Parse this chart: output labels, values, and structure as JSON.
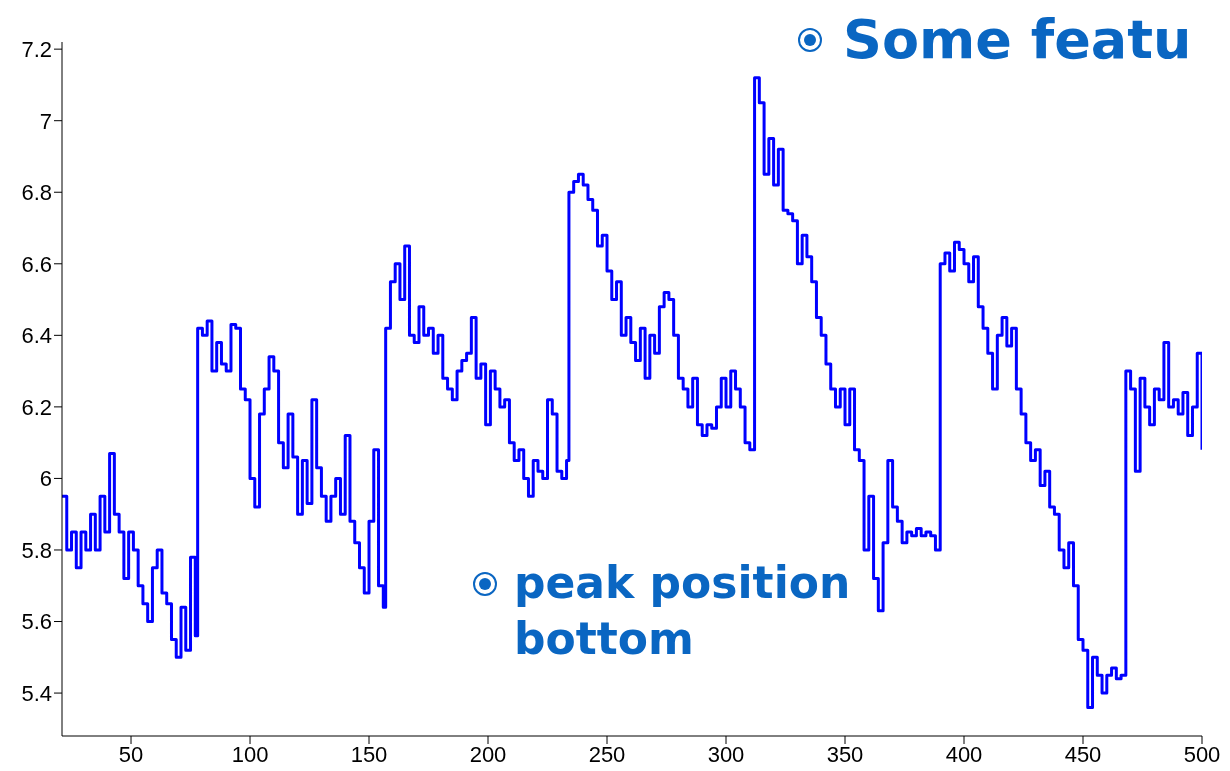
{
  "chart_data": {
    "type": "step",
    "title": "Some featu",
    "annotations": [
      "peak position bottom"
    ],
    "xlim": [
      21,
      500
    ],
    "ylim": [
      5.28,
      7.22
    ],
    "marker": "none",
    "line_style": "solid",
    "xticks": [
      50,
      100,
      150,
      200,
      250,
      300,
      350,
      400,
      450,
      500
    ],
    "yticks": [
      5.4,
      5.6,
      5.8,
      6,
      6.2,
      6.4,
      6.6,
      6.8,
      7,
      7.2
    ],
    "series": [
      {
        "color": "#0000ff",
        "x": [
          21,
          23,
          25,
          27,
          29,
          31,
          33,
          35,
          37,
          39,
          41,
          43,
          45,
          47,
          49,
          51,
          53,
          55,
          57,
          59,
          61,
          63,
          65,
          67,
          69,
          71,
          73,
          75,
          77,
          78,
          80,
          82,
          84,
          86,
          88,
          90,
          92,
          94,
          96,
          98,
          100,
          102,
          104,
          106,
          108,
          110,
          112,
          114,
          116,
          118,
          120,
          122,
          124,
          126,
          128,
          130,
          132,
          134,
          136,
          138,
          140,
          142,
          144,
          146,
          148,
          150,
          152,
          154,
          156,
          157,
          159,
          161,
          163,
          165,
          167,
          169,
          171,
          173,
          175,
          177,
          179,
          181,
          183,
          185,
          187,
          189,
          191,
          193,
          195,
          197,
          199,
          201,
          203,
          205,
          207,
          209,
          211,
          213,
          215,
          217,
          219,
          221,
          223,
          225,
          227,
          229,
          231,
          233,
          234,
          236,
          238,
          240,
          242,
          244,
          246,
          248,
          250,
          252,
          254,
          256,
          258,
          260,
          262,
          264,
          266,
          268,
          270,
          272,
          274,
          276,
          278,
          280,
          282,
          284,
          286,
          288,
          290,
          292,
          294,
          296,
          298,
          300,
          302,
          304,
          306,
          308,
          310,
          312,
          314,
          316,
          318,
          320,
          322,
          324,
          326,
          328,
          330,
          332,
          334,
          336,
          338,
          340,
          342,
          344,
          346,
          348,
          350,
          352,
          354,
          356,
          358,
          360,
          362,
          364,
          366,
          368,
          370,
          372,
          374,
          376,
          378,
          380,
          382,
          384,
          386,
          388,
          390,
          392,
          394,
          396,
          398,
          400,
          402,
          404,
          406,
          408,
          410,
          412,
          414,
          416,
          418,
          420,
          422,
          424,
          426,
          428,
          430,
          432,
          434,
          436,
          438,
          440,
          442,
          444,
          446,
          448,
          450,
          452,
          454,
          456,
          458,
          460,
          462,
          464,
          466,
          468,
          470,
          472,
          474,
          476,
          478,
          480,
          482,
          484,
          486,
          488,
          490,
          492,
          494,
          496,
          498,
          500
        ],
        "values": [
          5.95,
          5.8,
          5.85,
          5.75,
          5.85,
          5.8,
          5.9,
          5.8,
          5.95,
          5.85,
          6.07,
          5.9,
          5.85,
          5.72,
          5.85,
          5.8,
          5.7,
          5.65,
          5.6,
          5.75,
          5.8,
          5.68,
          5.65,
          5.55,
          5.5,
          5.64,
          5.52,
          5.78,
          5.56,
          6.42,
          6.4,
          6.44,
          6.3,
          6.38,
          6.32,
          6.3,
          6.43,
          6.42,
          6.25,
          6.22,
          6.0,
          5.92,
          6.18,
          6.25,
          6.34,
          6.3,
          6.1,
          6.03,
          6.18,
          6.06,
          5.9,
          6.05,
          5.93,
          6.22,
          6.03,
          5.95,
          5.88,
          5.95,
          6.0,
          5.9,
          6.12,
          5.88,
          5.82,
          5.75,
          5.68,
          5.88,
          6.08,
          5.7,
          5.64,
          6.42,
          6.55,
          6.6,
          6.5,
          6.65,
          6.4,
          6.38,
          6.48,
          6.4,
          6.42,
          6.35,
          6.4,
          6.28,
          6.25,
          6.22,
          6.3,
          6.33,
          6.35,
          6.45,
          6.28,
          6.32,
          6.15,
          6.3,
          6.25,
          6.2,
          6.22,
          6.1,
          6.05,
          6.08,
          6.0,
          5.95,
          6.05,
          6.02,
          6.0,
          6.22,
          6.18,
          6.02,
          6.0,
          6.05,
          6.8,
          6.83,
          6.85,
          6.82,
          6.78,
          6.75,
          6.65,
          6.68,
          6.58,
          6.5,
          6.55,
          6.4,
          6.45,
          6.38,
          6.33,
          6.42,
          6.28,
          6.4,
          6.35,
          6.48,
          6.52,
          6.5,
          6.4,
          6.28,
          6.25,
          6.2,
          6.28,
          6.15,
          6.12,
          6.15,
          6.14,
          6.2,
          6.28,
          6.2,
          6.3,
          6.25,
          6.2,
          6.1,
          6.08,
          7.12,
          7.05,
          6.85,
          6.95,
          6.82,
          6.92,
          6.75,
          6.74,
          6.72,
          6.6,
          6.68,
          6.62,
          6.55,
          6.45,
          6.4,
          6.32,
          6.25,
          6.2,
          6.25,
          6.15,
          6.25,
          6.08,
          6.05,
          5.8,
          5.95,
          5.72,
          5.63,
          5.82,
          6.05,
          5.92,
          5.88,
          5.82,
          5.85,
          5.84,
          5.86,
          5.84,
          5.85,
          5.84,
          5.8,
          6.6,
          6.63,
          6.58,
          6.66,
          6.64,
          6.6,
          6.55,
          6.62,
          6.48,
          6.42,
          6.35,
          6.25,
          6.4,
          6.45,
          6.37,
          6.42,
          6.25,
          6.18,
          6.1,
          6.05,
          6.08,
          5.98,
          6.02,
          5.92,
          5.9,
          5.8,
          5.75,
          5.82,
          5.7,
          5.55,
          5.52,
          5.36,
          5.5,
          5.45,
          5.4,
          5.45,
          5.47,
          5.44,
          5.45,
          6.3,
          6.25,
          6.02,
          6.28,
          6.2,
          6.15,
          6.25,
          6.22,
          6.38,
          6.2,
          6.22,
          6.18,
          6.24,
          6.12,
          6.2,
          6.35,
          6.08
        ]
      }
    ]
  }
}
